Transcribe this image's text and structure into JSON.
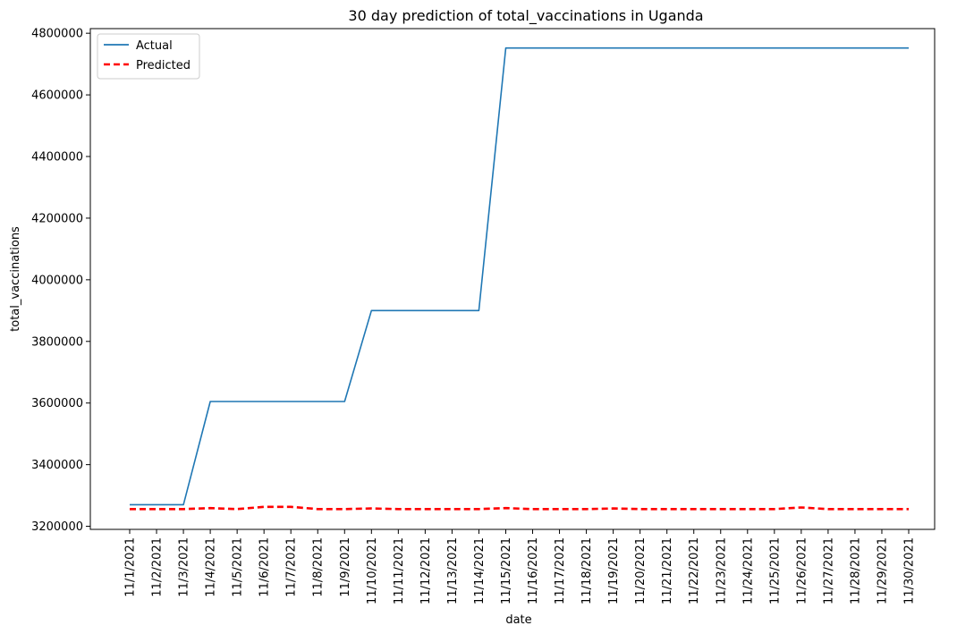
{
  "chart_data": {
    "type": "line",
    "title": "30 day prediction of total_vaccinations in Uganda",
    "xlabel": "date",
    "ylabel": "total_vaccinations",
    "categories": [
      "11/1/2021",
      "11/2/2021",
      "11/3/2021",
      "11/4/2021",
      "11/5/2021",
      "11/6/2021",
      "11/7/2021",
      "11/8/2021",
      "11/9/2021",
      "11/10/2021",
      "11/11/2021",
      "11/12/2021",
      "11/13/2021",
      "11/14/2021",
      "11/15/2021",
      "11/16/2021",
      "11/17/2021",
      "11/18/2021",
      "11/19/2021",
      "11/20/2021",
      "11/21/2021",
      "11/22/2021",
      "11/23/2021",
      "11/24/2021",
      "11/25/2021",
      "11/26/2021",
      "11/27/2021",
      "11/28/2021",
      "11/29/2021",
      "11/30/2021"
    ],
    "yticks": [
      3200000,
      3400000,
      3600000,
      3800000,
      4000000,
      4200000,
      4400000,
      4600000,
      4800000
    ],
    "ytick_labels": [
      "3200000",
      "3400000",
      "3600000",
      "3800000",
      "4000000",
      "4200000",
      "4400000",
      "4600000",
      "4800000"
    ],
    "ylim": [
      3190000,
      4815000
    ],
    "grid": false,
    "legend_position": "top-left",
    "series": [
      {
        "name": "Actual",
        "color": "#1f77b4",
        "style": "solid",
        "values": [
          3270000,
          3270000,
          3270000,
          3605000,
          3605000,
          3605000,
          3605000,
          3605000,
          3605000,
          3900000,
          3900000,
          3900000,
          3900000,
          3900000,
          4752000,
          4752000,
          4752000,
          4752000,
          4752000,
          4752000,
          4752000,
          4752000,
          4752000,
          4752000,
          4752000,
          4752000,
          4752000,
          4752000,
          4752000,
          4752000
        ]
      },
      {
        "name": "Predicted",
        "color": "#ff0000",
        "style": "dashed",
        "values": [
          3256000,
          3256000,
          3256000,
          3259000,
          3256000,
          3263000,
          3263000,
          3256000,
          3256000,
          3258000,
          3256000,
          3256000,
          3256000,
          3256000,
          3259000,
          3256000,
          3256000,
          3256000,
          3258000,
          3256000,
          3256000,
          3256000,
          3256000,
          3256000,
          3256000,
          3261000,
          3256000,
          3256000,
          3256000,
          3256000
        ]
      }
    ]
  }
}
